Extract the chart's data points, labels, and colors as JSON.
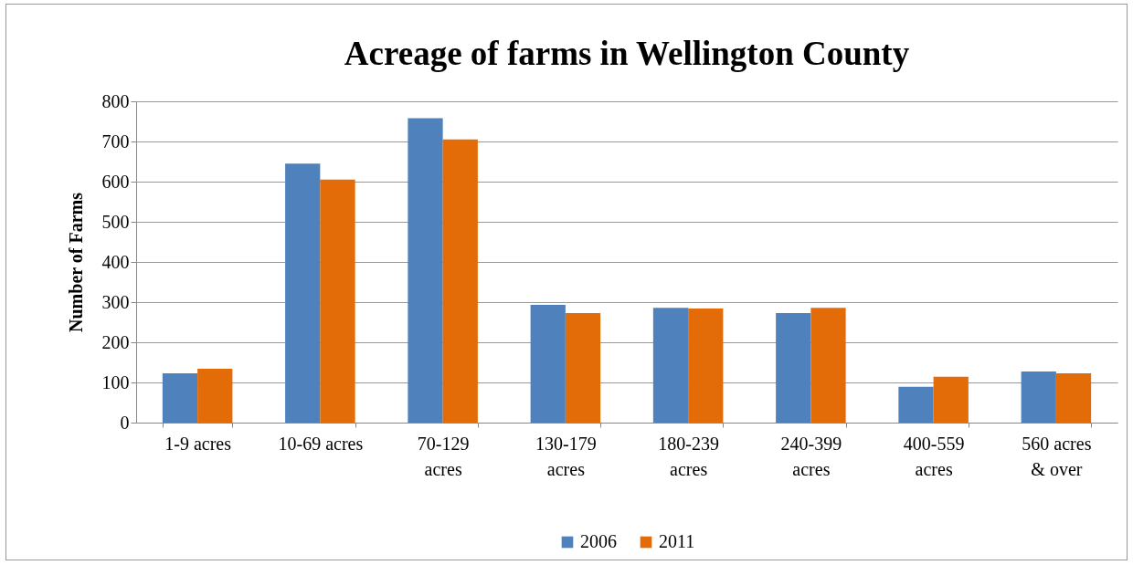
{
  "chart_data": {
    "type": "bar",
    "title": "Acreage of farms in Wellington County",
    "ylabel": "Number of Farms",
    "categories": [
      "1-9 acres",
      "10-69 acres",
      "70-129 acres",
      "130-179 acres",
      "180-239 acres",
      "240-399 acres",
      "400-559 acres",
      "560 acres & over"
    ],
    "series": [
      {
        "name": "2006",
        "color": "#4f81bd",
        "values": [
          123,
          645,
          758,
          293,
          286,
          273,
          89,
          127
        ]
      },
      {
        "name": "2011",
        "color": "#e36c09",
        "values": [
          134,
          605,
          705,
          273,
          284,
          286,
          114,
          123
        ]
      }
    ],
    "ylim": [
      0,
      800
    ],
    "yticks": [
      0,
      100,
      200,
      300,
      400,
      500,
      600,
      700,
      800
    ],
    "grid": "y",
    "legend": "bottom"
  }
}
